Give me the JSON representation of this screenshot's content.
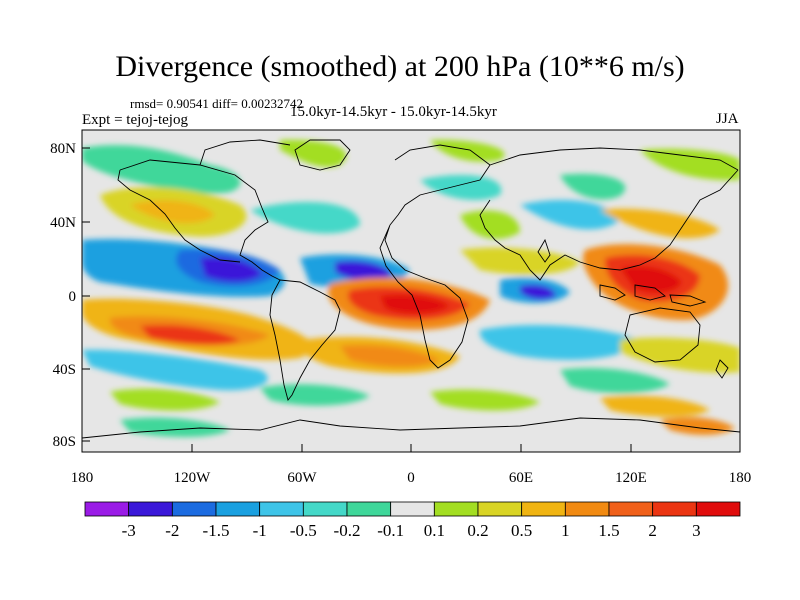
{
  "title": "Divergence (smoothed) at 200 hPa (10**6 m/s)",
  "stats_line": "rmsd= 0.90541 diff= 0.00232742",
  "experiment_line": "Expt = tejoj-tejog",
  "period_line": "15.0kyr-14.5kyr - 15.0kyr-14.5kyr",
  "season": "JJA",
  "map": {
    "lat_labels": [
      "80N",
      "40N",
      "0",
      "40S",
      "80S"
    ],
    "lon_labels": [
      "180",
      "120W",
      "60W",
      "0",
      "60E",
      "120E",
      "180"
    ]
  },
  "colorbar": {
    "colors": [
      "#9a1be6",
      "#3b18d9",
      "#1b6be0",
      "#1aa0e0",
      "#3ec4e8",
      "#44d8c8",
      "#3fd79a",
      "#e6e6e6",
      "#a3de22",
      "#d9d425",
      "#f0b412",
      "#f18a12",
      "#f0601a",
      "#eb3512",
      "#e00c0c"
    ],
    "labels": [
      "-3",
      "-2",
      "-1.5",
      "-1",
      "-0.5",
      "-0.2",
      "-0.1",
      "0.1",
      "0.2",
      "0.5",
      "1",
      "1.5",
      "2",
      "3"
    ]
  }
}
